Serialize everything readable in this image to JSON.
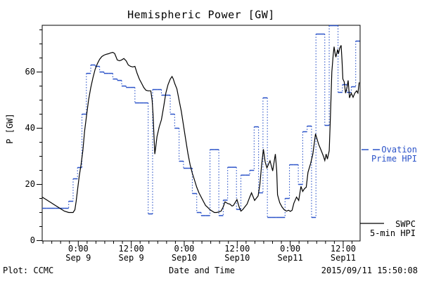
{
  "title": "Hemispheric Power [GW]",
  "footer": {
    "left": "Plot: CCMC",
    "center": "Date and Time",
    "right": "2015/09/11 15:50:08"
  },
  "y_axis": {
    "label": "P [GW]",
    "major_ticks": [
      0,
      20,
      40,
      60
    ],
    "minor_step": 5,
    "max": 76.5
  },
  "x_axis": {
    "label": "Date and Time",
    "minor_step_hours": 2,
    "ticks": [
      {
        "t": 8.17,
        "time": "0:00",
        "date": "Sep 9"
      },
      {
        "t": 20.17,
        "time": "12:00",
        "date": "Sep 9"
      },
      {
        "t": 32.17,
        "time": "0:00",
        "date": "Sep10"
      },
      {
        "t": 44.17,
        "time": "12:00",
        "date": "Sep10"
      },
      {
        "t": 56.17,
        "time": "0:00",
        "date": "Sep11"
      },
      {
        "t": 68.17,
        "time": "12:00",
        "date": "Sep11"
      }
    ]
  },
  "legend": {
    "ovation": {
      "line1": "Ovation",
      "line2": "Prime HPI",
      "color": "#2a52c8"
    },
    "swpc": {
      "line1": "SWPC",
      "line2": "5-min HPI",
      "color": "#000000"
    }
  },
  "chart_data": {
    "type": "line",
    "title": "Hemispheric Power [GW]",
    "xlabel": "Date and Time",
    "ylabel": "P [GW]",
    "x_range": "2015-09-08 ~16:00 to 2015-09-11 ~16:00 (72 hours)",
    "ylim": [
      0,
      76.5
    ],
    "y_major_ticks": [
      0,
      20,
      40,
      60
    ],
    "y_minor_step": 5,
    "x_major_tick_every_hours": 12,
    "x_minor_tick_every_hours": 2,
    "series": [
      {
        "name": "Ovation Prime HPI",
        "color": "#2a52c8",
        "style": "hourly steps: solid horizontal caps, dotted vertical connectors",
        "t_start_hours": 0,
        "dt_hours": 1,
        "hourly_values": [
          11.5,
          11.5,
          11.5,
          11.5,
          11.5,
          11.5,
          14,
          22,
          26,
          45,
          59.5,
          62.5,
          62,
          60,
          59.5,
          59.5,
          57.5,
          57,
          55,
          54.5,
          54.5,
          49,
          49,
          49,
          9.5,
          53.75,
          53.75,
          51.75,
          51.75,
          45,
          40,
          28.25,
          25.75,
          25.75,
          16.75,
          10,
          8.9,
          8.9,
          32.4,
          32.4,
          8.9,
          14.4,
          26.1,
          26.1,
          11.1,
          23.3,
          23.3,
          25,
          40.5,
          17,
          50.8,
          8.25,
          8.25,
          8.25,
          8.25,
          15,
          27,
          27,
          20,
          38.75,
          40.75,
          8.25,
          73.5,
          73.5,
          41,
          76.5,
          76.5,
          52.75,
          55.5,
          52.75,
          54.75,
          71
        ]
      },
      {
        "name": "SWPC 5-min HPI",
        "color": "#000000",
        "style": "solid line",
        "points_t_hours_value_gw": [
          [
            0,
            15.5
          ],
          [
            0.5,
            15
          ],
          [
            1,
            14.5
          ],
          [
            1.5,
            14
          ],
          [
            2,
            13.5
          ],
          [
            2.5,
            13
          ],
          [
            3,
            12.5
          ],
          [
            3.5,
            12
          ],
          [
            4,
            11.5
          ],
          [
            4.5,
            11
          ],
          [
            5,
            10.5
          ],
          [
            6,
            10
          ],
          [
            7,
            10
          ],
          [
            7.4,
            11
          ],
          [
            7.7,
            14
          ],
          [
            8,
            18
          ],
          [
            8.4,
            23
          ],
          [
            8.8,
            27
          ],
          [
            9.2,
            32
          ],
          [
            9.6,
            39
          ],
          [
            10,
            44
          ],
          [
            10.5,
            50
          ],
          [
            11,
            54.5
          ],
          [
            11.5,
            58
          ],
          [
            12,
            61
          ],
          [
            12.5,
            63
          ],
          [
            13,
            64.5
          ],
          [
            13.5,
            65.5
          ],
          [
            14,
            66
          ],
          [
            14.5,
            66.3
          ],
          [
            15,
            66.5
          ],
          [
            15.5,
            66.8
          ],
          [
            16,
            67
          ],
          [
            16.4,
            66.6
          ],
          [
            16.7,
            65.5
          ],
          [
            17,
            64.3
          ],
          [
            17.5,
            64
          ],
          [
            18,
            64.3
          ],
          [
            18.5,
            64.8
          ],
          [
            19,
            64
          ],
          [
            19.5,
            62.5
          ],
          [
            20,
            62
          ],
          [
            20.5,
            61.8
          ],
          [
            21,
            62
          ],
          [
            21.5,
            59.5
          ],
          [
            22,
            57.5
          ],
          [
            22.5,
            56
          ],
          [
            23,
            54.5
          ],
          [
            23.5,
            53.5
          ],
          [
            24,
            53.3
          ],
          [
            24.6,
            53.3
          ],
          [
            24.9,
            50
          ],
          [
            25.1,
            45
          ],
          [
            25.3,
            38
          ],
          [
            25.5,
            30.8
          ],
          [
            25.7,
            33
          ],
          [
            26,
            37
          ],
          [
            26.5,
            40.5
          ],
          [
            27,
            43
          ],
          [
            27.5,
            47.5
          ],
          [
            28,
            52.5
          ],
          [
            28.5,
            55.5
          ],
          [
            29,
            57.5
          ],
          [
            29.4,
            58.4
          ],
          [
            29.7,
            57.5
          ],
          [
            30,
            56
          ],
          [
            30.5,
            54
          ],
          [
            31,
            50
          ],
          [
            31.5,
            46
          ],
          [
            32,
            41
          ],
          [
            32.5,
            36
          ],
          [
            33,
            31
          ],
          [
            33.5,
            27
          ],
          [
            34,
            24
          ],
          [
            34.5,
            21.5
          ],
          [
            35,
            19
          ],
          [
            35.5,
            17
          ],
          [
            36,
            15.5
          ],
          [
            36.5,
            14
          ],
          [
            37,
            12.5
          ],
          [
            37.5,
            11.8
          ],
          [
            38,
            11
          ],
          [
            38.5,
            10.5
          ],
          [
            39,
            10
          ],
          [
            39.5,
            10
          ],
          [
            40,
            10.2
          ],
          [
            40.5,
            10.5
          ],
          [
            41,
            12
          ],
          [
            41.4,
            13.8
          ],
          [
            42,
            13.2
          ],
          [
            42.5,
            13
          ],
          [
            43,
            12.3
          ],
          [
            43.3,
            12.5
          ],
          [
            44.1,
            14.6
          ],
          [
            44.6,
            12
          ],
          [
            45,
            10.5
          ],
          [
            45.4,
            11
          ],
          [
            45.8,
            11.8
          ],
          [
            46.4,
            13
          ],
          [
            47,
            15.5
          ],
          [
            47.4,
            17
          ],
          [
            48.1,
            14.3
          ],
          [
            48.9,
            15.9
          ],
          [
            49.3,
            20
          ],
          [
            49.7,
            27
          ],
          [
            50.1,
            32.5
          ],
          [
            50.5,
            28
          ],
          [
            50.9,
            25.9
          ],
          [
            51.6,
            28.4
          ],
          [
            52.2,
            24.8
          ],
          [
            52.8,
            30.8
          ],
          [
            53.1,
            25
          ],
          [
            53.3,
            16.3
          ],
          [
            53.8,
            13.5
          ],
          [
            54.3,
            12
          ],
          [
            54.8,
            11
          ],
          [
            55.3,
            10.5
          ],
          [
            55.8,
            10.8
          ],
          [
            56.2,
            10.4
          ],
          [
            56.6,
            10.8
          ],
          [
            57,
            13.3
          ],
          [
            57.6,
            15.5
          ],
          [
            58.1,
            14.3
          ],
          [
            58.6,
            19.3
          ],
          [
            59,
            17.5
          ],
          [
            59.4,
            18.5
          ],
          [
            59.8,
            19
          ],
          [
            60.2,
            24.3
          ],
          [
            60.8,
            27.5
          ],
          [
            61.3,
            30.8
          ],
          [
            61.9,
            38
          ],
          [
            62.6,
            34.3
          ],
          [
            63.2,
            32
          ],
          [
            63.7,
            30
          ],
          [
            64,
            28.5
          ],
          [
            64.3,
            30.8
          ],
          [
            64.6,
            29
          ],
          [
            65,
            32
          ],
          [
            65.3,
            45
          ],
          [
            65.6,
            60
          ],
          [
            65.9,
            66
          ],
          [
            66.1,
            69
          ],
          [
            66.3,
            67
          ],
          [
            66.5,
            65.3
          ],
          [
            66.7,
            66.5
          ],
          [
            66.9,
            68
          ],
          [
            67.1,
            66.5
          ],
          [
            67.4,
            68.5
          ],
          [
            67.7,
            69.5
          ],
          [
            67.9,
            64
          ],
          [
            68.1,
            57.5
          ],
          [
            68.4,
            56.5
          ],
          [
            68.7,
            52.5
          ],
          [
            69,
            54.3
          ],
          [
            69.3,
            57
          ],
          [
            69.6,
            50.8
          ],
          [
            70,
            52.5
          ],
          [
            70.4,
            51
          ],
          [
            70.8,
            52.5
          ],
          [
            71.2,
            53.3
          ],
          [
            71.5,
            52.5
          ],
          [
            71.8,
            56.3
          ]
        ]
      }
    ]
  }
}
